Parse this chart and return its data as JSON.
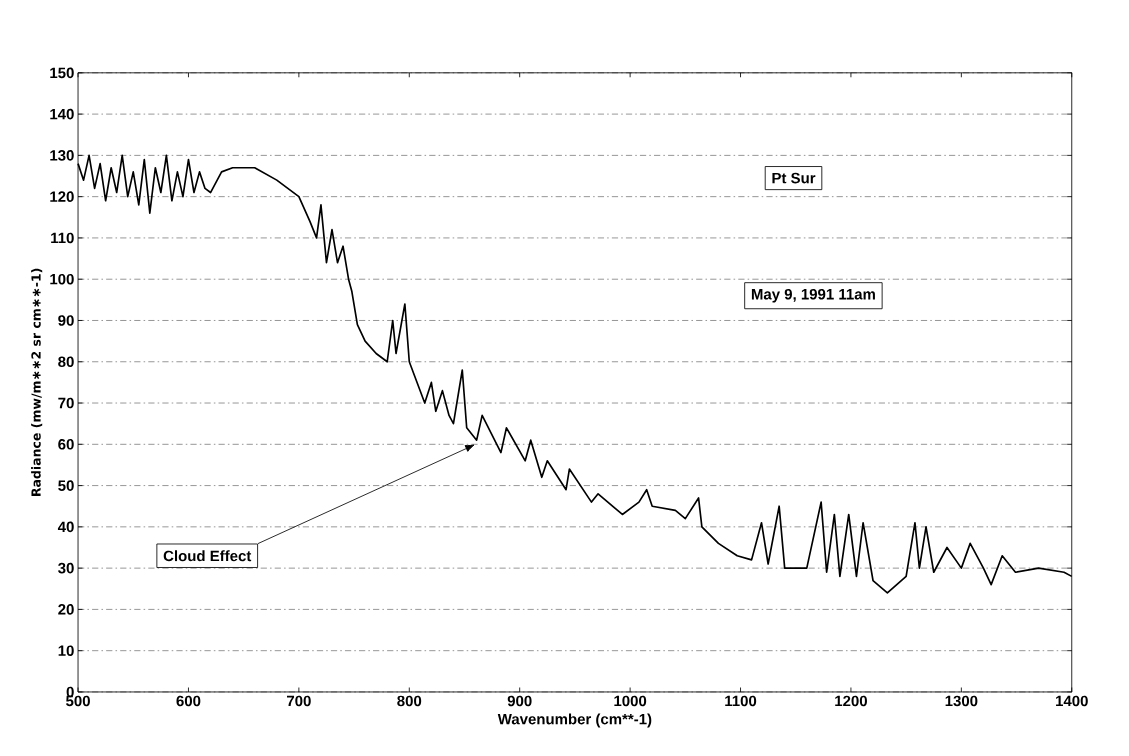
{
  "chart_data": {
    "type": "line",
    "xlabel": "Wavenumber (cm**-1)",
    "ylabel": "Radiance (mw/m∗∗2 sr cm∗∗-1)",
    "x": [
      500,
      505,
      510,
      515,
      520,
      525,
      530,
      535,
      540,
      545,
      550,
      555,
      560,
      565,
      570,
      575,
      580,
      585,
      590,
      595,
      600,
      605,
      610,
      615,
      620,
      630,
      640,
      660,
      680,
      700,
      710,
      716,
      720,
      725,
      730,
      735,
      740,
      745,
      748,
      753,
      760,
      770,
      780,
      785,
      788,
      796,
      800,
      814,
      820,
      824,
      830,
      836,
      840,
      848,
      852,
      861,
      866,
      883,
      888,
      905,
      910,
      920,
      925,
      942,
      945,
      965,
      971,
      993,
      1008,
      1015,
      1020,
      1041,
      1050,
      1062,
      1065,
      1080,
      1097,
      1110,
      1119,
      1125,
      1135,
      1140,
      1160,
      1173,
      1178,
      1185,
      1190,
      1198,
      1205,
      1211,
      1220,
      1233,
      1250,
      1258,
      1262,
      1268,
      1275,
      1287,
      1300,
      1308,
      1320,
      1327,
      1337,
      1349,
      1370,
      1393,
      1400
    ],
    "values": [
      128,
      124,
      130,
      122,
      128,
      119,
      127,
      121,
      130,
      120,
      126,
      118,
      129,
      116,
      127,
      121,
      130,
      119,
      126,
      120,
      129,
      121,
      126,
      122,
      121,
      126,
      127,
      127,
      124,
      120,
      114,
      110,
      118,
      104,
      112,
      104,
      108,
      100,
      97,
      89,
      85,
      82,
      80,
      90,
      82,
      94,
      80,
      70,
      75,
      68,
      73,
      67,
      65,
      78,
      64,
      61,
      67,
      58,
      64,
      56,
      61,
      52,
      56,
      49,
      54,
      46,
      48,
      43,
      46,
      49,
      45,
      44,
      42,
      47,
      40,
      36,
      33,
      32,
      41,
      31,
      45,
      30,
      30,
      46,
      29,
      43,
      28,
      43,
      28,
      41,
      27,
      24,
      28,
      41,
      30,
      40,
      29,
      35,
      30,
      36,
      30,
      26,
      33,
      29,
      30,
      29,
      28
    ],
    "color": "#000000",
    "marker": "none",
    "line_style": "solid",
    "xlim": [
      500,
      1400
    ],
    "ylim": [
      0,
      150
    ],
    "xticks": [
      500,
      600,
      700,
      800,
      900,
      1000,
      1100,
      1200,
      1300,
      1400
    ],
    "yticks": [
      0,
      10,
      20,
      30,
      40,
      50,
      60,
      70,
      80,
      90,
      100,
      110,
      120,
      130,
      140,
      150
    ],
    "grid": "y",
    "annotations": [
      "Pt Sur",
      "May 9, 1991  11am",
      "Cloud Effect"
    ]
  }
}
